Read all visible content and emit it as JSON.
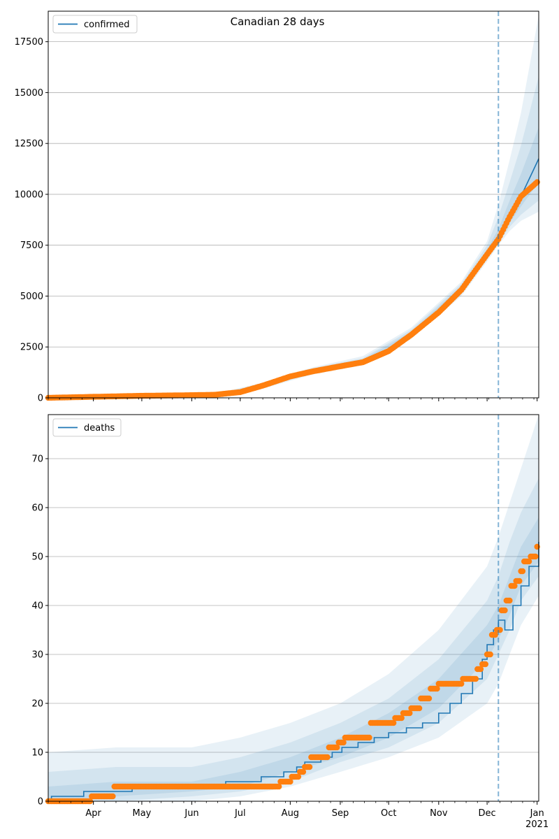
{
  "figure": {
    "title": "Canadian 28 days"
  },
  "colors": {
    "model_line": "#1f77b4",
    "observed_points": "#ff7f0e",
    "band": "#1f77b4",
    "vline": "#1f77b4",
    "grid": "#b0b0b0"
  },
  "chart_data": [
    {
      "type": "line",
      "legend": "confirmed",
      "legend_position": "top-left",
      "grid": "y",
      "xlim": [
        "2020-03-04",
        "2021-01-02"
      ],
      "ylim": [
        0,
        19000
      ],
      "yticks": [
        0,
        2500,
        5000,
        7500,
        10000,
        12500,
        15000,
        17500
      ],
      "forecast_start": "2020-12-08",
      "model_series": {
        "name": "confirmed",
        "x": [
          "2020-03-04",
          "2020-04-01",
          "2020-05-01",
          "2020-06-01",
          "2020-06-15",
          "2020-07-01",
          "2020-07-15",
          "2020-08-01",
          "2020-08-15",
          "2020-09-01",
          "2020-09-15",
          "2020-10-01",
          "2020-10-15",
          "2020-11-01",
          "2020-11-15",
          "2020-12-01",
          "2020-12-08",
          "2020-12-15",
          "2020-12-22",
          "2021-01-02"
        ],
        "values": [
          0,
          50,
          100,
          130,
          150,
          280,
          600,
          1050,
          1300,
          1550,
          1800,
          2350,
          3150,
          4200,
          5350,
          7100,
          7800,
          8800,
          9900,
          11750
        ]
      },
      "observed": {
        "x": [
          "2020-03-04",
          "2020-04-01",
          "2020-05-01",
          "2020-06-01",
          "2020-06-15",
          "2020-07-01",
          "2020-07-15",
          "2020-08-01",
          "2020-08-15",
          "2020-09-01",
          "2020-09-15",
          "2020-10-01",
          "2020-10-15",
          "2020-11-01",
          "2020-11-15",
          "2020-12-01",
          "2020-12-08",
          "2020-12-15",
          "2020-12-22",
          "2021-01-01"
        ],
        "values": [
          0,
          50,
          100,
          130,
          150,
          280,
          600,
          1050,
          1300,
          1550,
          1750,
          2300,
          3100,
          4200,
          5300,
          7050,
          7800,
          8900,
          9900,
          10600
        ]
      },
      "bands": [
        {
          "x": [
            "2020-03-04",
            "2020-06-15",
            "2020-07-15",
            "2020-08-15",
            "2020-09-15",
            "2020-10-15",
            "2020-11-15",
            "2020-12-01",
            "2020-12-08",
            "2020-12-15",
            "2020-12-22",
            "2021-01-02"
          ],
          "lower": [
            0,
            120,
            450,
            1150,
            1600,
            2900,
            5000,
            6700,
            7500,
            8200,
            8700,
            9150
          ],
          "upper": [
            0,
            200,
            750,
            1500,
            2050,
            3450,
            5700,
            7700,
            9500,
            11700,
            14000,
            18800
          ]
        },
        {
          "x": [
            "2020-03-04",
            "2020-06-15",
            "2020-07-15",
            "2020-08-15",
            "2020-09-15",
            "2020-10-15",
            "2020-11-15",
            "2020-12-01",
            "2020-12-08",
            "2020-12-15",
            "2020-12-22",
            "2021-01-02"
          ],
          "lower": [
            0,
            130,
            500,
            1200,
            1650,
            2950,
            5100,
            6850,
            7600,
            8400,
            9000,
            9700
          ],
          "upper": [
            0,
            185,
            700,
            1450,
            1950,
            3350,
            5600,
            7500,
            8900,
            10600,
            12400,
            15800
          ]
        },
        {
          "x": [
            "2020-03-04",
            "2020-06-15",
            "2020-07-15",
            "2020-08-15",
            "2020-09-15",
            "2020-10-15",
            "2020-11-15",
            "2020-12-01",
            "2020-12-08",
            "2020-12-15",
            "2020-12-22",
            "2021-01-02"
          ],
          "lower": [
            0,
            140,
            550,
            1250,
            1700,
            3050,
            5200,
            6950,
            7700,
            8600,
            9400,
            10600
          ],
          "upper": [
            0,
            170,
            650,
            1380,
            1880,
            3250,
            5500,
            7300,
            8300,
            9700,
            11000,
            13300
          ]
        }
      ]
    },
    {
      "type": "line",
      "legend": "deaths",
      "legend_position": "top-left",
      "grid": "y",
      "xlim": [
        "2020-03-04",
        "2021-01-02"
      ],
      "ylim": [
        0,
        79
      ],
      "yticks": [
        0,
        10,
        20,
        30,
        40,
        50,
        60,
        70
      ],
      "xticks": [
        "Apr",
        "May",
        "Jun",
        "Jul",
        "Aug",
        "Sep",
        "Oct",
        "Nov",
        "Dec",
        "Jan"
      ],
      "xtick_dates": [
        "2020-04-01",
        "2020-05-01",
        "2020-06-01",
        "2020-07-01",
        "2020-08-01",
        "2020-09-01",
        "2020-10-01",
        "2020-11-01",
        "2020-12-01",
        "2021-01-01"
      ],
      "xtick_sublabel": "2021",
      "forecast_start": "2020-12-08",
      "model_series": {
        "name": "deaths",
        "x": [
          "2020-03-04",
          "2020-03-06",
          "2020-03-26",
          "2020-04-25",
          "2020-06-22",
          "2020-07-14",
          "2020-07-28",
          "2020-08-05",
          "2020-08-10",
          "2020-08-20",
          "2020-08-27",
          "2020-09-02",
          "2020-09-12",
          "2020-09-22",
          "2020-10-01",
          "2020-10-12",
          "2020-10-22",
          "2020-11-01",
          "2020-11-08",
          "2020-11-15",
          "2020-11-22",
          "2020-11-28",
          "2020-12-01",
          "2020-12-05",
          "2020-12-08",
          "2020-12-12",
          "2020-12-17",
          "2020-12-22",
          "2020-12-27",
          "2021-01-02"
        ],
        "values": [
          0,
          1,
          2,
          3,
          4,
          5,
          6,
          7,
          8,
          9,
          10,
          11,
          12,
          13,
          14,
          15,
          16,
          18,
          20,
          22,
          25,
          29,
          32,
          35,
          37,
          35,
          40,
          44,
          48,
          53
        ]
      },
      "observed": {
        "x": [
          "2020-03-04",
          "2020-03-31",
          "2020-04-14",
          "2020-07-18",
          "2020-07-26",
          "2020-08-02",
          "2020-08-07",
          "2020-08-10",
          "2020-08-14",
          "2020-08-19",
          "2020-08-25",
          "2020-08-31",
          "2020-09-04",
          "2020-09-15",
          "2020-09-20",
          "2020-10-05",
          "2020-10-10",
          "2020-10-15",
          "2020-10-21",
          "2020-10-27",
          "2020-11-01",
          "2020-11-14",
          "2020-11-16",
          "2020-11-18",
          "2020-11-25",
          "2020-11-28",
          "2020-12-01",
          "2020-12-04",
          "2020-12-07",
          "2020-12-10",
          "2020-12-13",
          "2020-12-16",
          "2020-12-19",
          "2020-12-22",
          "2020-12-24",
          "2020-12-28",
          "2021-01-01"
        ],
        "values": [
          0,
          1,
          3,
          3,
          4,
          5,
          6,
          7,
          9,
          9,
          11,
          12,
          13,
          13,
          16,
          17,
          18,
          19,
          21,
          23,
          24,
          24,
          25,
          25,
          27,
          28,
          30,
          34,
          35,
          39,
          41,
          44,
          45,
          47,
          49,
          50,
          52
        ]
      },
      "bands": [
        {
          "x": [
            "2020-03-04",
            "2020-04-15",
            "2020-06-01",
            "2020-07-01",
            "2020-08-01",
            "2020-09-01",
            "2020-10-01",
            "2020-11-01",
            "2020-12-01",
            "2020-12-08",
            "2020-12-15",
            "2020-12-22",
            "2021-01-02"
          ],
          "lower": [
            0,
            0,
            0,
            1,
            3,
            6,
            9,
            13,
            20,
            24,
            30,
            36,
            42
          ],
          "upper": [
            10,
            11,
            11,
            13,
            16,
            20,
            26,
            35,
            48,
            54,
            61,
            68,
            79
          ]
        },
        {
          "x": [
            "2020-03-04",
            "2020-04-15",
            "2020-06-01",
            "2020-07-01",
            "2020-08-01",
            "2020-09-01",
            "2020-10-01",
            "2020-11-01",
            "2020-12-01",
            "2020-12-08",
            "2020-12-15",
            "2020-12-22",
            "2021-01-02"
          ],
          "lower": [
            0,
            0,
            1,
            2,
            4,
            8,
            11,
            16,
            25,
            30,
            35,
            41,
            46
          ],
          "upper": [
            6,
            7,
            7,
            9,
            12,
            16,
            21,
            29,
            41,
            46,
            53,
            59,
            66
          ]
        },
        {
          "x": [
            "2020-03-04",
            "2020-04-15",
            "2020-06-01",
            "2020-07-01",
            "2020-08-01",
            "2020-09-01",
            "2020-10-01",
            "2020-11-01",
            "2020-12-01",
            "2020-12-08",
            "2020-12-15",
            "2020-12-22",
            "2021-01-02"
          ],
          "lower": [
            0,
            1,
            2,
            3,
            6,
            9,
            13,
            19,
            29,
            33,
            38,
            44,
            49
          ],
          "upper": [
            3,
            4,
            4,
            6,
            9,
            13,
            18,
            25,
            36,
            40,
            46,
            52,
            58
          ]
        }
      ]
    }
  ]
}
